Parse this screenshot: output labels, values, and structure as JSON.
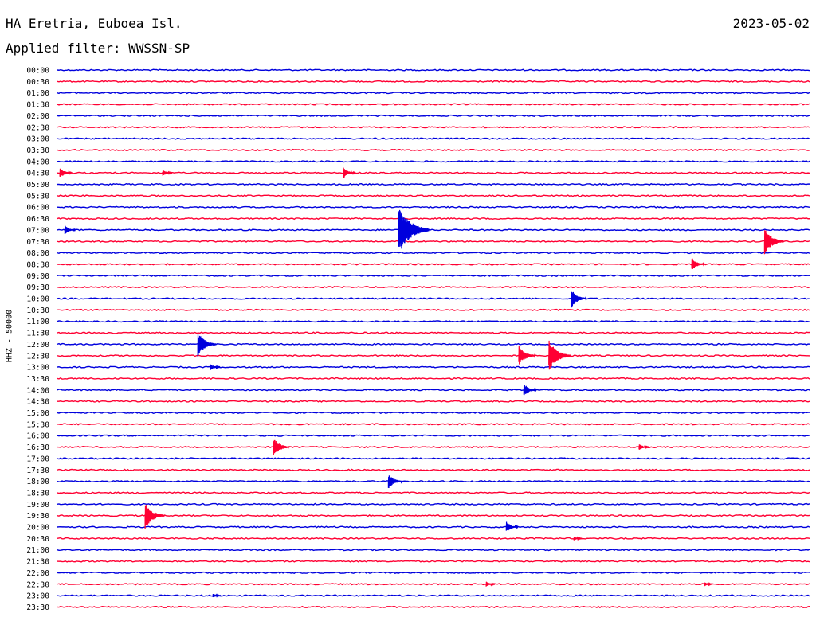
{
  "header": {
    "station": "HA Eretria, Euboea Isl.",
    "date": "2023-05-02",
    "filter": "Applied filter: WWSSN-SP",
    "channel": "HHZ - 50000"
  },
  "colors": {
    "trace_a": "#0000dd",
    "trace_b": "#ff0033",
    "background": "#ffffff"
  },
  "chart_data": {
    "type": "line",
    "title": "HA Eretria, Euboea Isl.",
    "ylabel": "HHZ - 50000",
    "rows": [
      "00:00",
      "00:30",
      "01:00",
      "01:30",
      "02:00",
      "02:30",
      "03:00",
      "03:30",
      "04:00",
      "04:30",
      "05:00",
      "05:30",
      "06:00",
      "06:30",
      "07:00",
      "07:30",
      "08:00",
      "08:30",
      "09:00",
      "09:30",
      "10:00",
      "10:30",
      "11:00",
      "11:30",
      "12:00",
      "12:30",
      "13:00",
      "13:30",
      "14:00",
      "14:30",
      "15:00",
      "15:30",
      "16:00",
      "16:30",
      "17:00",
      "17:30",
      "18:00",
      "18:30",
      "19:00",
      "19:30",
      "20:00",
      "20:30",
      "21:00",
      "21:30",
      "22:00",
      "22:30",
      "23:00",
      "23:30"
    ],
    "row_duration_min": 30,
    "series_colors": [
      "#0000dd",
      "#ff0033"
    ],
    "events": [
      {
        "row": "04:30",
        "minute": 0.1,
        "amplitude": 0.5
      },
      {
        "row": "04:30",
        "minute": 4.2,
        "amplitude": 0.3
      },
      {
        "row": "04:30",
        "minute": 11.4,
        "amplitude": 0.5
      },
      {
        "row": "07:00",
        "minute": 0.3,
        "amplitude": 0.4
      },
      {
        "row": "07:00",
        "minute": 13.6,
        "amplitude": 2.2
      },
      {
        "row": "07:30",
        "minute": 28.2,
        "amplitude": 1.2
      },
      {
        "row": "08:30",
        "minute": 25.3,
        "amplitude": 0.6
      },
      {
        "row": "10:00",
        "minute": 20.5,
        "amplitude": 0.8
      },
      {
        "row": "12:00",
        "minute": 5.6,
        "amplitude": 1.1
      },
      {
        "row": "12:30",
        "minute": 18.4,
        "amplitude": 0.9
      },
      {
        "row": "12:30",
        "minute": 19.6,
        "amplitude": 1.4
      },
      {
        "row": "13:00",
        "minute": 6.1,
        "amplitude": 0.3
      },
      {
        "row": "14:00",
        "minute": 18.6,
        "amplitude": 0.6
      },
      {
        "row": "16:30",
        "minute": 8.6,
        "amplitude": 0.9
      },
      {
        "row": "16:30",
        "minute": 23.2,
        "amplitude": 0.3
      },
      {
        "row": "18:00",
        "minute": 13.2,
        "amplitude": 0.7
      },
      {
        "row": "19:30",
        "minute": 3.5,
        "amplitude": 1.2
      },
      {
        "row": "20:00",
        "minute": 17.9,
        "amplitude": 0.5
      },
      {
        "row": "20:30",
        "minute": 20.6,
        "amplitude": 0.2
      },
      {
        "row": "22:30",
        "minute": 17.1,
        "amplitude": 0.25
      },
      {
        "row": "22:30",
        "minute": 25.8,
        "amplitude": 0.2
      },
      {
        "row": "23:00",
        "minute": 6.2,
        "amplitude": 0.2
      }
    ]
  }
}
